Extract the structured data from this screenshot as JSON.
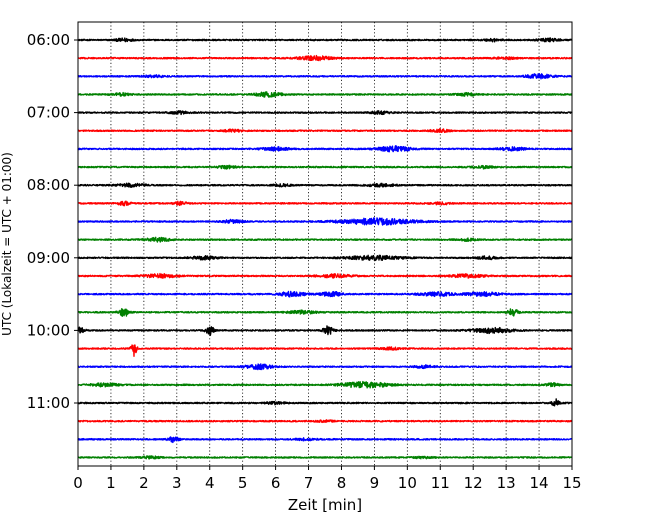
{
  "chart_data": {
    "type": "line",
    "subtype": "helicorder",
    "xlabel": "Zeit  [min]",
    "ylabel": "UTC (Lokalzeit = UTC + 01:00)",
    "xlim": [
      0,
      15
    ],
    "x_ticks": [
      0,
      1,
      2,
      3,
      4,
      5,
      6,
      7,
      8,
      9,
      10,
      11,
      12,
      13,
      14,
      15
    ],
    "x_tick_labels": [
      "0",
      "1",
      "2",
      "3",
      "4",
      "5",
      "6",
      "7",
      "8",
      "9",
      "10",
      "11",
      "12",
      "13",
      "14",
      "15"
    ],
    "y_tick_labels": [
      "06:00",
      "07:00",
      "08:00",
      "09:00",
      "10:00",
      "11:00"
    ],
    "y_tick_rows": [
      0,
      4,
      8,
      12,
      16,
      20
    ],
    "grid": "vertical dotted lines at each minute",
    "trace_colors": [
      "#000000",
      "#ff0000",
      "#0000ff",
      "#008000"
    ],
    "rows": [
      {
        "start": "06:00",
        "color": "#000000",
        "events": [
          {
            "t": 1.4,
            "amp": 0.3,
            "w": 0.25
          },
          {
            "t": 12.6,
            "amp": 0.25,
            "w": 0.25
          },
          {
            "t": 14.3,
            "amp": 0.3,
            "w": 0.3
          }
        ]
      },
      {
        "start": "06:15",
        "color": "#ff0000",
        "events": [
          {
            "t": 7.2,
            "amp": 0.4,
            "w": 0.5
          },
          {
            "t": 13.0,
            "amp": 0.2,
            "w": 0.3
          }
        ]
      },
      {
        "start": "06:30",
        "color": "#0000ff",
        "events": [
          {
            "t": 14.0,
            "amp": 0.4,
            "w": 0.4
          },
          {
            "t": 2.3,
            "amp": 0.2,
            "w": 0.3
          }
        ]
      },
      {
        "start": "06:45",
        "color": "#008000",
        "events": [
          {
            "t": 1.3,
            "amp": 0.25,
            "w": 0.3
          },
          {
            "t": 5.8,
            "amp": 0.45,
            "w": 0.4
          },
          {
            "t": 11.8,
            "amp": 0.25,
            "w": 0.3
          }
        ]
      },
      {
        "start": "07:00",
        "color": "#000000",
        "events": [
          {
            "t": 3.1,
            "amp": 0.25,
            "w": 0.3
          },
          {
            "t": 9.2,
            "amp": 0.25,
            "w": 0.3
          }
        ]
      },
      {
        "start": "07:15",
        "color": "#ff0000",
        "events": [
          {
            "t": 4.7,
            "amp": 0.2,
            "w": 0.3
          },
          {
            "t": 11.0,
            "amp": 0.25,
            "w": 0.3
          }
        ]
      },
      {
        "start": "07:30",
        "color": "#0000ff",
        "events": [
          {
            "t": 6.0,
            "amp": 0.35,
            "w": 0.4
          },
          {
            "t": 9.6,
            "amp": 0.5,
            "w": 0.5
          },
          {
            "t": 13.2,
            "amp": 0.3,
            "w": 0.4
          }
        ]
      },
      {
        "start": "07:45",
        "color": "#008000",
        "events": [
          {
            "t": 4.5,
            "amp": 0.25,
            "w": 0.3
          },
          {
            "t": 12.3,
            "amp": 0.25,
            "w": 0.3
          }
        ]
      },
      {
        "start": "08:00",
        "color": "#000000",
        "events": [
          {
            "t": 1.6,
            "amp": 0.3,
            "w": 0.4
          },
          {
            "t": 6.2,
            "amp": 0.2,
            "w": 0.3
          },
          {
            "t": 9.2,
            "amp": 0.25,
            "w": 0.4
          }
        ]
      },
      {
        "start": "08:15",
        "color": "#ff0000",
        "events": [
          {
            "t": 1.4,
            "amp": 0.35,
            "w": 0.2
          },
          {
            "t": 3.1,
            "amp": 0.3,
            "w": 0.2
          },
          {
            "t": 11.0,
            "amp": 0.2,
            "w": 0.3
          }
        ]
      },
      {
        "start": "08:30",
        "color": "#0000ff",
        "events": [
          {
            "t": 4.7,
            "amp": 0.3,
            "w": 0.3
          },
          {
            "t": 9.1,
            "amp": 0.6,
            "w": 1.1
          }
        ]
      },
      {
        "start": "08:45",
        "color": "#008000",
        "events": [
          {
            "t": 2.4,
            "amp": 0.35,
            "w": 0.4
          },
          {
            "t": 11.8,
            "amp": 0.2,
            "w": 0.3
          }
        ]
      },
      {
        "start": "09:00",
        "color": "#000000",
        "events": [
          {
            "t": 3.8,
            "amp": 0.3,
            "w": 0.4
          },
          {
            "t": 9.0,
            "amp": 0.4,
            "w": 0.8
          },
          {
            "t": 12.4,
            "amp": 0.3,
            "w": 0.3
          }
        ]
      },
      {
        "start": "09:15",
        "color": "#ff0000",
        "events": [
          {
            "t": 2.5,
            "amp": 0.35,
            "w": 0.5
          },
          {
            "t": 7.8,
            "amp": 0.3,
            "w": 0.5
          },
          {
            "t": 11.8,
            "amp": 0.3,
            "w": 0.5
          }
        ]
      },
      {
        "start": "09:30",
        "color": "#0000ff",
        "events": [
          {
            "t": 6.5,
            "amp": 0.45,
            "w": 0.4
          },
          {
            "t": 7.7,
            "amp": 0.45,
            "w": 0.3
          },
          {
            "t": 10.9,
            "amp": 0.35,
            "w": 0.5
          },
          {
            "t": 12.3,
            "amp": 0.35,
            "w": 0.5
          }
        ]
      },
      {
        "start": "09:45",
        "color": "#008000",
        "events": [
          {
            "t": 1.4,
            "amp": 0.8,
            "w": 0.15
          },
          {
            "t": 6.8,
            "amp": 0.3,
            "w": 0.4
          },
          {
            "t": 13.2,
            "amp": 0.7,
            "w": 0.15
          }
        ]
      },
      {
        "start": "10:00",
        "color": "#000000",
        "events": [
          {
            "t": 0.1,
            "amp": 0.8,
            "w": 0.1
          },
          {
            "t": 4.0,
            "amp": 0.9,
            "w": 0.12
          },
          {
            "t": 7.6,
            "amp": 0.85,
            "w": 0.15
          },
          {
            "t": 12.6,
            "amp": 0.5,
            "w": 0.6
          }
        ]
      },
      {
        "start": "10:15",
        "color": "#ff0000",
        "events": [
          {
            "t": 1.7,
            "amp": 1.5,
            "w": 0.08
          },
          {
            "t": 9.5,
            "amp": 0.2,
            "w": 0.3
          }
        ]
      },
      {
        "start": "10:30",
        "color": "#0000ff",
        "events": [
          {
            "t": 5.5,
            "amp": 0.45,
            "w": 0.4
          },
          {
            "t": 10.5,
            "amp": 0.25,
            "w": 0.3
          }
        ]
      },
      {
        "start": "10:45",
        "color": "#008000",
        "events": [
          {
            "t": 0.8,
            "amp": 0.3,
            "w": 0.4
          },
          {
            "t": 8.7,
            "amp": 0.55,
            "w": 0.7
          },
          {
            "t": 14.4,
            "amp": 0.35,
            "w": 0.2
          }
        ]
      },
      {
        "start": "11:00",
        "color": "#000000",
        "events": [
          {
            "t": 6.0,
            "amp": 0.2,
            "w": 0.3
          },
          {
            "t": 14.5,
            "amp": 0.9,
            "w": 0.1
          }
        ]
      },
      {
        "start": "11:15",
        "color": "#ff0000",
        "events": [
          {
            "t": 7.5,
            "amp": 0.15,
            "w": 0.3
          }
        ]
      },
      {
        "start": "11:30",
        "color": "#0000ff",
        "events": [
          {
            "t": 2.9,
            "amp": 0.55,
            "w": 0.15
          },
          {
            "t": 6.9,
            "amp": 0.2,
            "w": 0.3
          }
        ]
      },
      {
        "start": "11:45",
        "color": "#008000",
        "events": [
          {
            "t": 2.2,
            "amp": 0.2,
            "w": 0.3
          },
          {
            "t": 10.5,
            "amp": 0.15,
            "w": 0.3
          }
        ]
      }
    ]
  }
}
